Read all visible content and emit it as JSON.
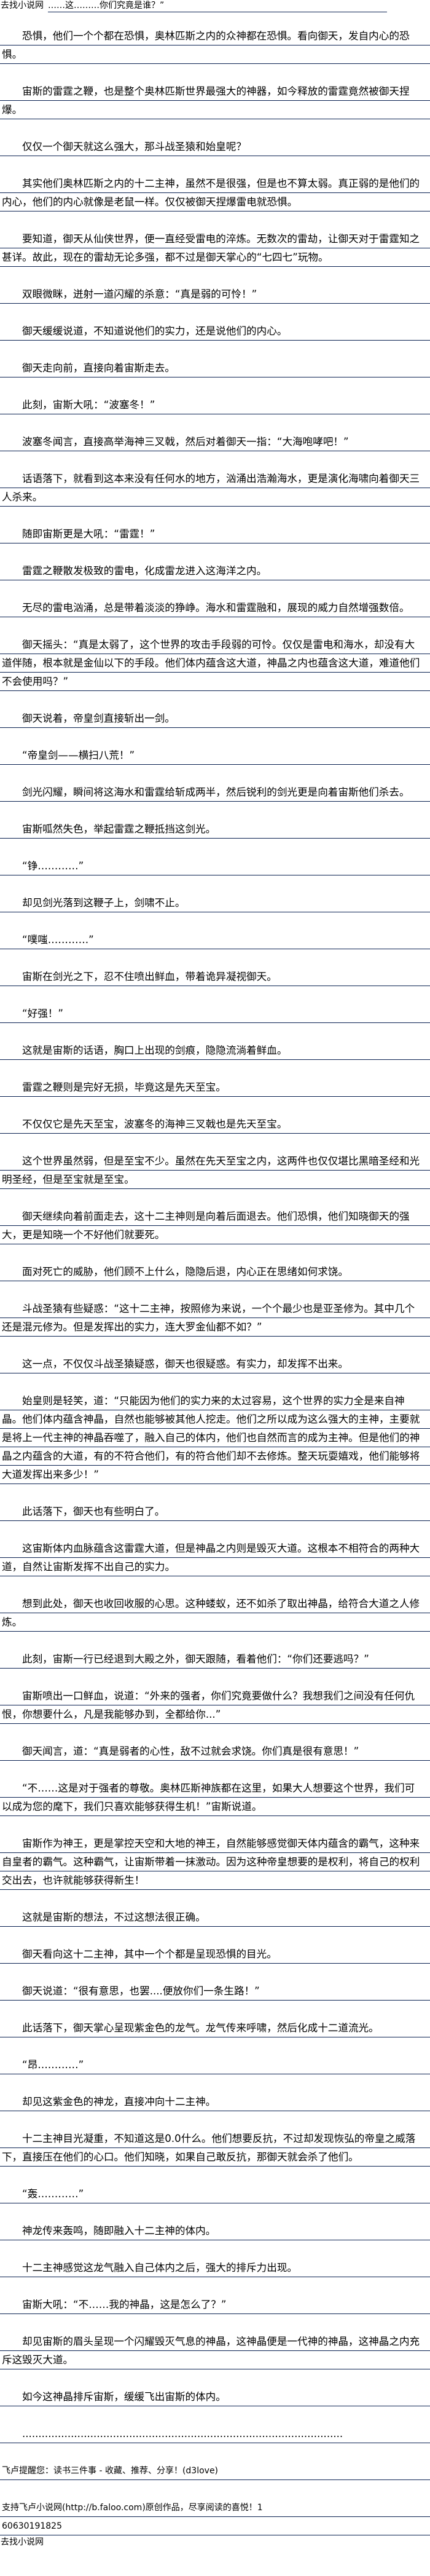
{
  "header": {
    "site_name": "去找小说网",
    "title": "……这………你们究竟是谁？”"
  },
  "paragraphs": [
    "恐惧，他们一个个都在恐惧，奥林匹斯之内的众神都在恐惧。看向御天，发自内心的恐惧。",
    "宙斯的雷霆之鞭，也是整个奥林匹斯世界最强大的神器，如今释放的雷霆竟然被御天捏爆。",
    "仅仅一个御天就这么强大，那斗战圣猿和始皇呢？",
    "其实他们奥林匹斯之内的十二主神，虽然不是很强，但是也不算太弱。真正弱的是他们的内心，他们的内心就像是老鼠一样。仅仅被御天捏爆雷电就恐惧。",
    "要知道，御天从仙侠世界，便一直经受雷电的淬炼。无数次的雷劫，让御天对于雷霆知之甚详。故此，现在的雷劫无论多强，都不过是御天掌心的“七四七”玩物。",
    "双眼微眯，迸射一道闪耀的杀意：“真是弱的可怜！”",
    "御天缓缓说道，不知道说他们的实力，还是说他们的内心。",
    "御天走向前，直接向着宙斯走去。",
    "此刻，宙斯大吼：“波塞冬！”",
    "波塞冬闻言，直接高举海神三叉戟，然后对着御天一指：“大海咆哮吧！”",
    "话语落下，就看到这本来没有任何水的地方，汹涌出浩瀚海水，更是演化海啸向着御天三人杀来。",
    "随即宙斯更是大吼：“雷霆！”",
    "雷霆之鞭散发极致的雷电，化成雷龙进入这海洋之内。",
    "无尽的雷电汹涌，总是带着淡淡的狰峥。海水和雷霆融和，展现的威力自然增强数倍。",
    "御天摇头：“真是太弱了，这个世界的攻击手段弱的可怜。仅仅是雷电和海水，却没有大道伴随，根本就是金仙以下的手段。他们体内蕴含这大道，神晶之内也蕴含这大道，难道他们不会使用吗？”",
    "御天说着，帝皇剑直接斩出一剑。",
    "“帝皇剑——横扫八荒！”",
    "剑光闪耀，瞬间将这海水和雷霆给斩成两半，然后锐利的剑光更是向着宙斯他们杀去。",
    "宙斯呱然失色，举起雷霆之鞭抵挡这剑光。",
    "“铮…………”",
    "却见剑光落到这鞭子上，剑啸不止。",
    "“噗嗤…………”",
    "宙斯在剑光之下，忍不住喷出鲜血，带着诡异凝视御天。",
    "“好强！”",
    "这就是宙斯的话语，胸口上出现的剑痕，隐隐流淌着鲜血。",
    "雷霆之鞭则是完好无损，毕竟这是先天至宝。",
    "不仅仅它是先天至宝，波塞冬的海神三叉戟也是先天至宝。",
    "这个世界虽然弱，但是至宝不少。虽然在先天至宝之内，这两件也仅仅堪比黑暗圣经和光明圣经，但是至宝就是至宝。",
    "御天继续向着前面走去，这十二主神则是向着后面退去。他们恐惧，他们知晓御天的强大，更是知晓一个不好他们就要死。",
    "面对死亡的威胁，他们顾不上什么，隐隐后退，内心正在思绪如何求饶。",
    "斗战圣猿有些疑惑：“这十二主神，按照修为来说，一个个最少也是亚圣修为。其中几个还是混元修为。但是发挥出的实力，连大罗金仙都不如？”",
    "这一点，不仅仅斗战圣猿疑惑，御天也很疑惑。有实力，却发挥不出来。",
    "始皇则是轻笑，道：“只能因为他们的实力来的太过容易，这个世界的实力全是来自神晶。他们体内蕴含神晶，自然也能够被其他人挖走。他们之所以成为这么强大的主神，主要就是将上一代主神的神晶吞噬了，融入自己的体内，他们也自然而言的成为主神。但是他们的神晶之内蕴含的大道，有的不符合他们，有的符合他们却不去修炼。整天玩耍嬉戏，他们能够将大道发挥出来多少！”",
    "此话落下，御天也有些明白了。",
    "这宙斯体内血脉蕴含这雷霆大道，但是神晶之内则是毁灭大道。这根本不相符合的两种大道，自然让宙斯发挥不出自己的实力。",
    "想到此处，御天也收回收服的心思。这种蝼蚁，还不如杀了取出神晶，给符合大道之人修炼。",
    "此刻，宙斯一行已经退到大殿之外，御天跟随，看着他们：“你们还要逃吗？”",
    "宙斯喷出一口鲜血，说道：“外来的强者，你们究竟要做什么？我想我们之间没有任何仇恨，你想要什么，凡是我能够办到，全都给你...”",
    "御天闻言，道：“真是弱者的心性，敌不过就会求饶。你们真是很有意思！”",
    "“不……这是对于强者的尊敬。奥林匹斯神族都在这里，如果大人想要这个世界，我们可以成为您的麾下，我们只喜欢能够获得生机！”宙斯说道。",
    "宙斯作为神王，更是掌控天空和大地的神王，自然能够感觉御天体内蕴含的霸气，这种来自皇者的霸气。这种霸气，让宙斯带着一抹激动。因为这种帝皇想要的是权利，将自己的权利交出去，也许就能够获得新生！",
    "这就是宙斯的想法，不过这想法很正确。",
    "御天看向这十二主神，其中一个个都是呈现恐惧的目光。",
    "御天说道：“很有意思，也罢....便放你们一条生路！”",
    "此话落下，御天掌心呈现紫金色的龙气。龙气传来呼啸，然后化成十二道流光。",
    "“昂…………”",
    "却见这紫金色的神龙，直接冲向十二主神。",
    "十二主神目光凝重，不知道这是0.0什么。他们想要反抗，不过却发现恢弘的帝皇之威落下，直接压在他们的心口。他们知晓，如果自己敢反抗，那御天就会杀了他们。",
    "“轰…………”",
    "神龙传来轰鸣，随即融入十二主神的体内。",
    "十二主神感觉这龙气融入自己体内之后，强大的排斥力出现。",
    "宙斯大吼：“不……我的神晶，这是怎么了？”",
    "却见宙斯的眉头呈现一个闪耀毁灭气息的神晶，这神晶便是一代神的神晶，这神晶之内充斥这毁灭大道。",
    "如今这神晶排斥宙斯，缓缓飞出宙斯的体内。",
    "..................................................................................................."
  ],
  "footer": {
    "reminder": "飞卢提醒您：读书三件事 - 收藏、推荐、分享！(d3love)",
    "support": "支持飞卢小说网(http://b.faloo.com)原创作品，尽享阅读的喜悦！1",
    "code": "60630191825",
    "site_name": "去找小说网"
  },
  "colors": {
    "rule_line": "#0b2252",
    "text": "#000000",
    "background": "#ffffff"
  }
}
